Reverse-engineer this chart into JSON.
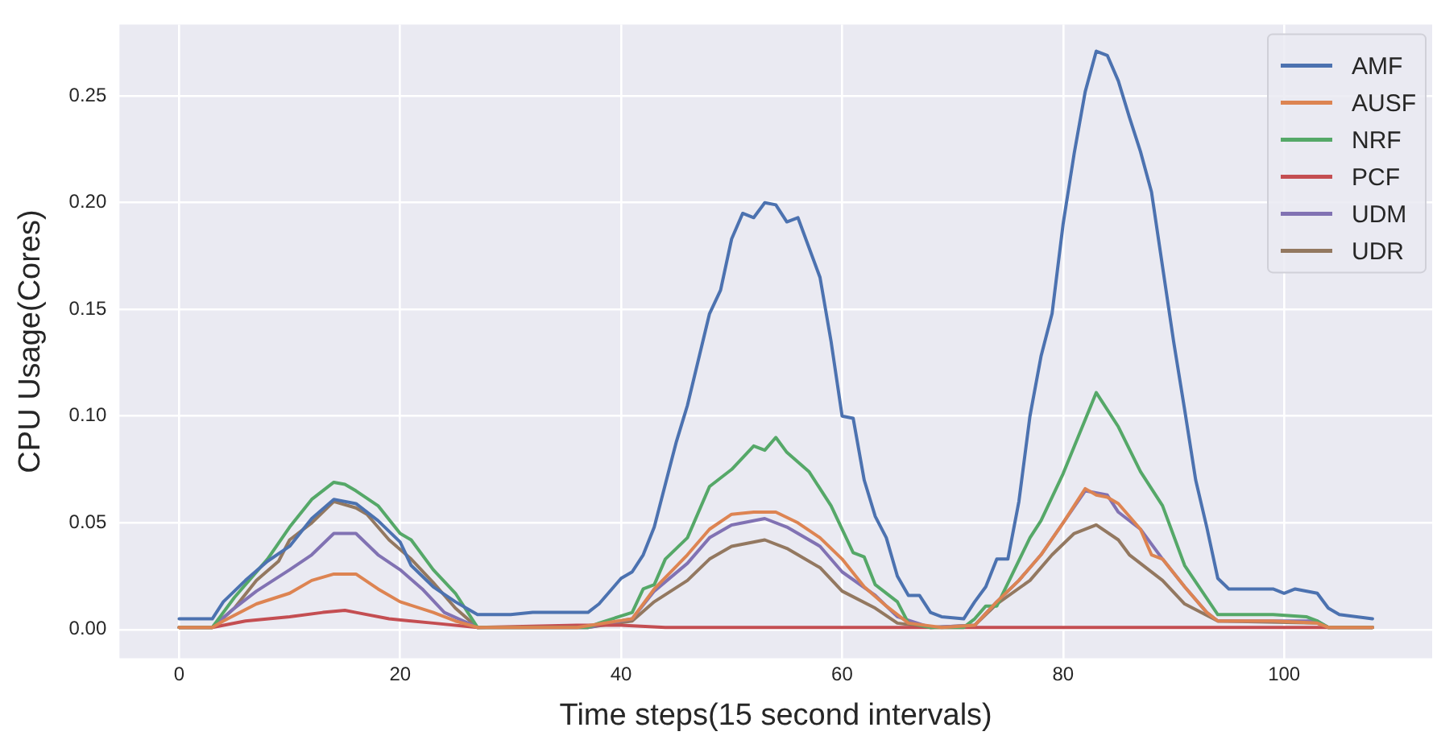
{
  "chart_data": {
    "type": "line",
    "xlabel": "Time steps(15 second intervals)",
    "ylabel": "CPU Usage(Cores)",
    "xlim": [
      -5.4,
      113.4
    ],
    "xticks": [
      0,
      20,
      40,
      60,
      80,
      100
    ],
    "ylim": [
      -0.0135,
      0.2835
    ],
    "yticks": [
      {
        "value": 0,
        "label": "0.00"
      },
      {
        "value": 0.05,
        "label": "0.05"
      },
      {
        "value": 0.1,
        "label": "0.10"
      },
      {
        "value": 0.15,
        "label": "0.15"
      },
      {
        "value": 0.2,
        "label": "0.20"
      },
      {
        "value": 0.25,
        "label": "0.25"
      }
    ],
    "grid": true,
    "legend": "top right",
    "marker": "none",
    "line_style": "solid",
    "series": [
      {
        "name": "AMF",
        "color": "#4c72b0",
        "x": [
          0,
          3,
          4,
          6,
          8,
          10,
          12,
          14,
          16,
          18,
          20,
          21,
          23,
          25,
          27,
          30,
          32,
          37,
          38,
          40,
          41,
          42,
          43,
          45,
          46,
          48,
          49,
          50,
          51,
          52,
          53,
          54,
          55,
          56,
          58,
          59,
          60,
          61,
          62,
          63,
          64,
          65,
          66,
          67,
          68,
          69,
          71,
          72,
          73,
          74,
          75,
          76,
          77,
          78,
          79,
          80,
          81,
          82,
          83,
          84,
          85,
          86,
          87,
          88,
          89,
          90,
          91,
          92,
          93,
          94,
          95,
          97,
          99,
          100,
          101,
          103,
          104,
          105,
          108
        ],
        "values": [
          0.005,
          0.005,
          0.013,
          0.023,
          0.032,
          0.039,
          0.052,
          0.061,
          0.059,
          0.051,
          0.041,
          0.03,
          0.02,
          0.013,
          0.007,
          0.007,
          0.008,
          0.008,
          0.012,
          0.024,
          0.027,
          0.035,
          0.048,
          0.088,
          0.105,
          0.148,
          0.159,
          0.183,
          0.195,
          0.193,
          0.2,
          0.199,
          0.191,
          0.193,
          0.165,
          0.135,
          0.1,
          0.099,
          0.07,
          0.053,
          0.043,
          0.025,
          0.016,
          0.016,
          0.008,
          0.006,
          0.005,
          0.013,
          0.02,
          0.033,
          0.033,
          0.06,
          0.1,
          0.128,
          0.148,
          0.19,
          0.223,
          0.252,
          0.271,
          0.269,
          0.257,
          0.24,
          0.224,
          0.205,
          0.17,
          0.135,
          0.103,
          0.07,
          0.048,
          0.024,
          0.019,
          0.019,
          0.019,
          0.017,
          0.019,
          0.017,
          0.01,
          0.007,
          0.005
        ]
      },
      {
        "name": "AUSF",
        "color": "#dd8452",
        "x": [
          0,
          3,
          4,
          7,
          10,
          12,
          14,
          16,
          18,
          20,
          23,
          25,
          27,
          36,
          41,
          43,
          46,
          48,
          50,
          52,
          54,
          56,
          58,
          60,
          62,
          64,
          66,
          69,
          72,
          74,
          76,
          78,
          80,
          82,
          83,
          84,
          85,
          87,
          88,
          89,
          91,
          93,
          94,
          99,
          103,
          104,
          108
        ],
        "values": [
          0.001,
          0.001,
          0.004,
          0.012,
          0.017,
          0.023,
          0.026,
          0.026,
          0.019,
          0.013,
          0.008,
          0.004,
          0.001,
          0.001,
          0.005,
          0.019,
          0.035,
          0.047,
          0.054,
          0.055,
          0.055,
          0.05,
          0.043,
          0.033,
          0.02,
          0.011,
          0.003,
          0.001,
          0.002,
          0.013,
          0.023,
          0.035,
          0.05,
          0.066,
          0.063,
          0.062,
          0.059,
          0.047,
          0.035,
          0.033,
          0.02,
          0.008,
          0.004,
          0.004,
          0.003,
          0.001,
          0.001
        ]
      },
      {
        "name": "NRF",
        "color": "#55a868",
        "x": [
          0,
          3,
          5,
          8,
          10,
          12,
          14,
          15,
          16,
          18,
          20,
          21,
          23,
          25,
          27,
          37,
          38,
          41,
          42,
          43,
          44,
          46,
          48,
          50,
          52,
          53,
          54,
          55,
          57,
          59,
          61,
          62,
          63,
          65,
          66,
          68,
          71,
          72,
          73,
          74,
          77,
          78,
          80,
          83,
          85,
          87,
          89,
          91,
          94,
          99,
          102,
          103,
          104,
          108
        ],
        "values": [
          0.001,
          0.001,
          0.015,
          0.033,
          0.048,
          0.061,
          0.069,
          0.068,
          0.065,
          0.058,
          0.045,
          0.042,
          0.028,
          0.017,
          0.001,
          0.001,
          0.003,
          0.008,
          0.019,
          0.021,
          0.033,
          0.043,
          0.067,
          0.075,
          0.086,
          0.084,
          0.09,
          0.083,
          0.074,
          0.058,
          0.036,
          0.034,
          0.021,
          0.013,
          0.003,
          0.001,
          0.001,
          0.005,
          0.011,
          0.011,
          0.043,
          0.051,
          0.073,
          0.111,
          0.095,
          0.074,
          0.058,
          0.03,
          0.007,
          0.007,
          0.006,
          0.004,
          0.001,
          0.001
        ]
      },
      {
        "name": "PCF",
        "color": "#c44e52",
        "x": [
          0,
          3,
          6,
          10,
          13,
          15,
          16,
          19,
          23,
          27,
          36,
          40,
          44,
          108
        ],
        "values": [
          0.001,
          0.001,
          0.004,
          0.006,
          0.008,
          0.009,
          0.008,
          0.005,
          0.003,
          0.001,
          0.002,
          0.002,
          0.001,
          0.001
        ]
      },
      {
        "name": "UDM",
        "color": "#8172b3",
        "x": [
          0,
          3,
          5,
          7,
          10,
          12,
          14,
          16,
          18,
          20,
          22,
          24,
          27,
          37,
          41,
          43,
          46,
          48,
          50,
          53,
          55,
          58,
          60,
          63,
          65,
          68,
          72,
          74,
          76,
          78,
          80,
          82,
          84,
          85,
          87,
          89,
          91,
          93,
          94,
          103,
          104,
          108
        ],
        "values": [
          0.001,
          0.001,
          0.01,
          0.018,
          0.028,
          0.035,
          0.045,
          0.045,
          0.035,
          0.028,
          0.019,
          0.008,
          0.001,
          0.001,
          0.005,
          0.018,
          0.031,
          0.043,
          0.049,
          0.052,
          0.048,
          0.039,
          0.027,
          0.016,
          0.006,
          0.001,
          0.002,
          0.013,
          0.023,
          0.035,
          0.05,
          0.065,
          0.063,
          0.055,
          0.047,
          0.033,
          0.02,
          0.008,
          0.004,
          0.004,
          0.001,
          0.001
        ]
      },
      {
        "name": "UDR",
        "color": "#937860",
        "x": [
          0,
          3,
          5,
          7,
          9,
          10,
          12,
          14,
          16,
          17,
          19,
          21,
          23,
          25,
          27,
          37,
          41,
          43,
          46,
          48,
          50,
          53,
          55,
          58,
          60,
          63,
          65,
          68,
          72,
          74,
          77,
          79,
          81,
          83,
          85,
          86,
          89,
          91,
          94,
          103,
          104,
          108
        ],
        "values": [
          0.001,
          0.001,
          0.01,
          0.023,
          0.032,
          0.042,
          0.05,
          0.06,
          0.057,
          0.054,
          0.042,
          0.033,
          0.022,
          0.01,
          0.001,
          0.001,
          0.004,
          0.013,
          0.023,
          0.033,
          0.039,
          0.042,
          0.038,
          0.029,
          0.018,
          0.01,
          0.003,
          0.001,
          0.002,
          0.012,
          0.023,
          0.035,
          0.045,
          0.049,
          0.042,
          0.035,
          0.023,
          0.012,
          0.004,
          0.003,
          0.001,
          0.001
        ]
      }
    ]
  }
}
